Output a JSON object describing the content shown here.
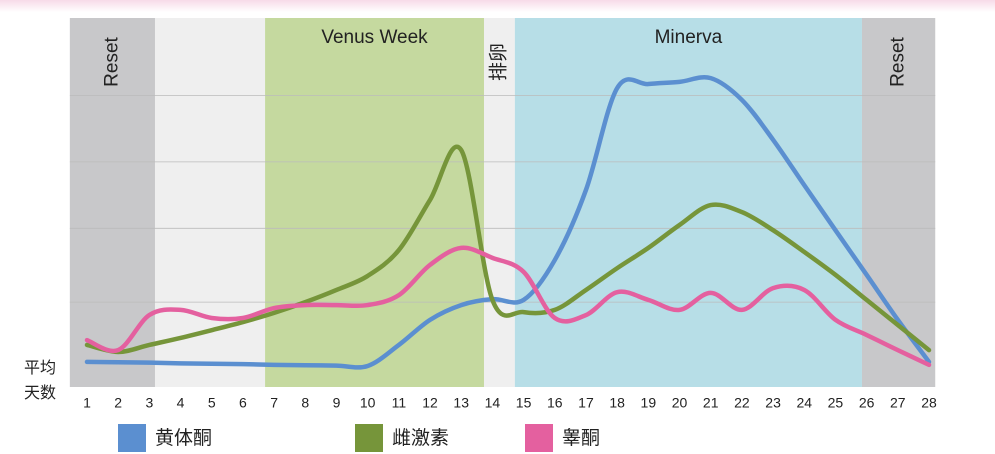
{
  "chart_data": {
    "type": "line",
    "y_label": [
      "平均",
      "天数"
    ],
    "x": [
      1,
      2,
      3,
      4,
      5,
      6,
      7,
      8,
      9,
      10,
      11,
      12,
      13,
      14,
      15,
      16,
      17,
      18,
      19,
      20,
      21,
      22,
      23,
      24,
      25,
      26,
      27,
      28
    ],
    "xlim": [
      0.45,
      28.2
    ],
    "ylim": [
      0,
      100
    ],
    "yticks": [
      23,
      43,
      61,
      79
    ],
    "grid": true,
    "bands": [
      {
        "label": "Reset",
        "start": 0.45,
        "end": 3.18,
        "color": "#c8c8ca",
        "vertical": true
      },
      {
        "start": 3.18,
        "end": 6.71,
        "color": "#efefef"
      },
      {
        "label": "Venus Week",
        "start": 6.71,
        "end": 13.73,
        "color": "#c5d99f",
        "vertical": false
      },
      {
        "label": "排卵",
        "start": 13.73,
        "end": 14.72,
        "color": "#efefef",
        "vertical": true
      },
      {
        "label": "Minerva",
        "start": 14.72,
        "end": 25.85,
        "color": "#b7dee7",
        "vertical": false
      },
      {
        "label": "Reset",
        "start": 25.85,
        "end": 28.2,
        "color": "#c8c8ca",
        "vertical": true
      }
    ],
    "series": [
      {
        "name": "黄体酮",
        "color": "#5b8fd0",
        "values": [
          6.8,
          6.7,
          6.6,
          6.4,
          6.3,
          6.2,
          6.0,
          5.9,
          5.8,
          5.7,
          11.4,
          18.2,
          22.2,
          23.8,
          23.6,
          34.4,
          53.4,
          81.0,
          82.1,
          82.7,
          83.7,
          77.8,
          67.0,
          54.7,
          42.5,
          30.4,
          18.2,
          6.8
        ]
      },
      {
        "name": "雌激素",
        "color": "#76953a",
        "values": [
          11.4,
          9.5,
          11.4,
          13.3,
          15.4,
          17.6,
          20.1,
          23.0,
          26.3,
          30.1,
          37.1,
          50.7,
          64.2,
          23.6,
          20.3,
          20.9,
          26.3,
          32.2,
          37.7,
          43.9,
          49.3,
          47.4,
          42.5,
          36.6,
          30.4,
          23.6,
          16.8,
          10.0
        ]
      },
      {
        "name": "睾酮",
        "color": "#e4609f",
        "values": [
          12.7,
          10.0,
          19.5,
          20.9,
          18.7,
          18.7,
          21.4,
          22.2,
          22.2,
          22.2,
          24.9,
          33.1,
          37.7,
          35.0,
          31.2,
          18.7,
          19.5,
          25.7,
          23.6,
          20.9,
          25.5,
          20.9,
          26.8,
          26.3,
          18.2,
          14.1,
          10.0,
          6.0
        ]
      }
    ]
  }
}
